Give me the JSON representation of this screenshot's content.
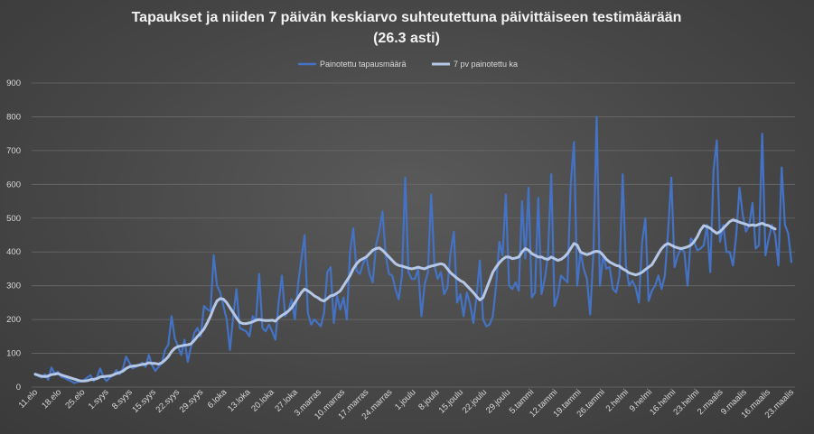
{
  "chart_data": {
    "type": "line",
    "title": "Tapaukset ja niiden 7 päivän keskiarvo suhteutettuna päivittäiseen testimäärään",
    "subtitle": "(26.3 asti)",
    "xlabel": "",
    "ylabel": "",
    "ylim": [
      0,
      900
    ],
    "yticks": [
      0,
      100,
      200,
      300,
      400,
      500,
      600,
      700,
      800,
      900
    ],
    "grid": true,
    "legend_position": "top",
    "x_labels": [
      "11.elo",
      "18.elo",
      "25.elo",
      "1.syys",
      "8.syys",
      "15.syys",
      "22.syys",
      "29.syys",
      "6.loka",
      "13.loka",
      "20.loka",
      "27.loka",
      "3.marras",
      "10.marras",
      "17.marras",
      "24.marras",
      "1.joulu",
      "8.joulu",
      "15.joulu",
      "22.joulu",
      "29.joulu",
      "5.tammi",
      "12.tammi",
      "19.tammi",
      "26.tammi",
      "2.helmi",
      "9.helmi",
      "16.helmi",
      "23.helmi",
      "2.maalis",
      "9.maalis",
      "16.maalis",
      "23.maalis"
    ],
    "series": [
      {
        "name": "Painotettu tapausmäärä",
        "color": "#4472c4",
        "values": [
          40,
          32,
          28,
          38,
          22,
          58,
          40,
          45,
          30,
          28,
          22,
          18,
          12,
          15,
          18,
          20,
          28,
          35,
          18,
          28,
          55,
          30,
          18,
          28,
          35,
          50,
          38,
          55,
          90,
          72,
          55,
          60,
          65,
          72,
          60,
          95,
          65,
          48,
          60,
          70,
          110,
          125,
          210,
          145,
          120,
          95,
          140,
          75,
          120,
          160,
          175,
          150,
          240,
          230,
          225,
          390,
          300,
          280,
          240,
          200,
          110,
          210,
          290,
          175,
          170,
          165,
          150,
          210,
          195,
          335,
          175,
          165,
          185,
          165,
          140,
          250,
          330,
          210,
          225,
          260,
          200,
          305,
          380,
          450,
          220,
          185,
          200,
          190,
          180,
          220,
          340,
          355,
          190,
          270,
          230,
          265,
          200,
          400,
          470,
          345,
          335,
          365,
          385,
          335,
          310,
          420,
          460,
          520,
          390,
          335,
          330,
          290,
          260,
          330,
          620,
          340,
          320,
          320,
          350,
          210,
          305,
          340,
          570,
          360,
          320,
          340,
          275,
          295,
          400,
          460,
          250,
          275,
          210,
          280,
          245,
          190,
          270,
          375,
          200,
          180,
          185,
          210,
          300,
          430,
          390,
          570,
          300,
          290,
          310,
          285,
          550,
          380,
          590,
          265,
          280,
          560,
          275,
          320,
          390,
          630,
          240,
          270,
          330,
          320,
          310,
          600,
          725,
          300,
          400,
          350,
          320,
          215,
          400,
          800,
          300,
          390,
          350,
          355,
          290,
          280,
          330,
          630,
          360,
          300,
          315,
          295,
          250,
          430,
          500,
          255,
          285,
          300,
          330,
          290,
          330,
          460,
          620,
          355,
          390,
          410,
          400,
          300,
          440,
          430,
          405,
          410,
          420,
          480,
          340,
          640,
          730,
          430,
          480,
          400,
          400,
          360,
          450,
          590,
          510,
          460,
          480,
          545,
          410,
          420,
          750,
          390,
          440,
          480,
          450,
          360,
          650,
          480,
          455,
          370
        ]
      },
      {
        "name": "7 pv painotettu ka",
        "color": "#b4c7e7",
        "values": [
          38,
          35,
          32,
          31,
          33,
          37,
          38,
          40,
          36,
          33,
          30,
          27,
          24,
          21,
          18,
          18,
          19,
          22,
          23,
          25,
          30,
          31,
          32,
          33,
          36,
          40,
          43,
          47,
          55,
          60,
          62,
          63,
          65,
          67,
          68,
          72,
          70,
          70,
          68,
          72,
          80,
          90,
          105,
          115,
          120,
          122,
          124,
          125,
          128,
          138,
          150,
          160,
          172,
          190,
          210,
          235,
          255,
          262,
          260,
          250,
          235,
          220,
          205,
          192,
          188,
          188,
          190,
          193,
          198,
          200,
          198,
          197,
          197,
          198,
          195,
          205,
          212,
          218,
          225,
          235,
          250,
          265,
          280,
          290,
          285,
          278,
          270,
          265,
          258,
          255,
          262,
          270,
          272,
          278,
          285,
          300,
          315,
          330,
          350,
          365,
          375,
          380,
          385,
          395,
          405,
          410,
          412,
          405,
          395,
          385,
          375,
          365,
          360,
          358,
          355,
          352,
          350,
          352,
          355,
          352,
          350,
          355,
          358,
          360,
          363,
          365,
          362,
          350,
          338,
          330,
          322,
          315,
          310,
          300,
          290,
          280,
          268,
          258,
          265,
          290,
          315,
          340,
          355,
          368,
          378,
          385,
          385,
          380,
          382,
          385,
          400,
          410,
          405,
          395,
          390,
          385,
          385,
          380,
          378,
          385,
          380,
          375,
          378,
          385,
          395,
          410,
          425,
          420,
          400,
          395,
          392,
          395,
          400,
          402,
          400,
          390,
          378,
          370,
          365,
          360,
          358,
          350,
          345,
          338,
          335,
          332,
          335,
          340,
          348,
          355,
          362,
          378,
          395,
          410,
          420,
          425,
          420,
          415,
          412,
          410,
          412,
          415,
          420,
          430,
          445,
          465,
          478,
          475,
          470,
          462,
          455,
          460,
          470,
          480,
          490,
          495,
          492,
          488,
          485,
          482,
          478,
          480,
          478,
          482,
          485,
          480,
          478,
          472,
          468
        ]
      }
    ]
  }
}
